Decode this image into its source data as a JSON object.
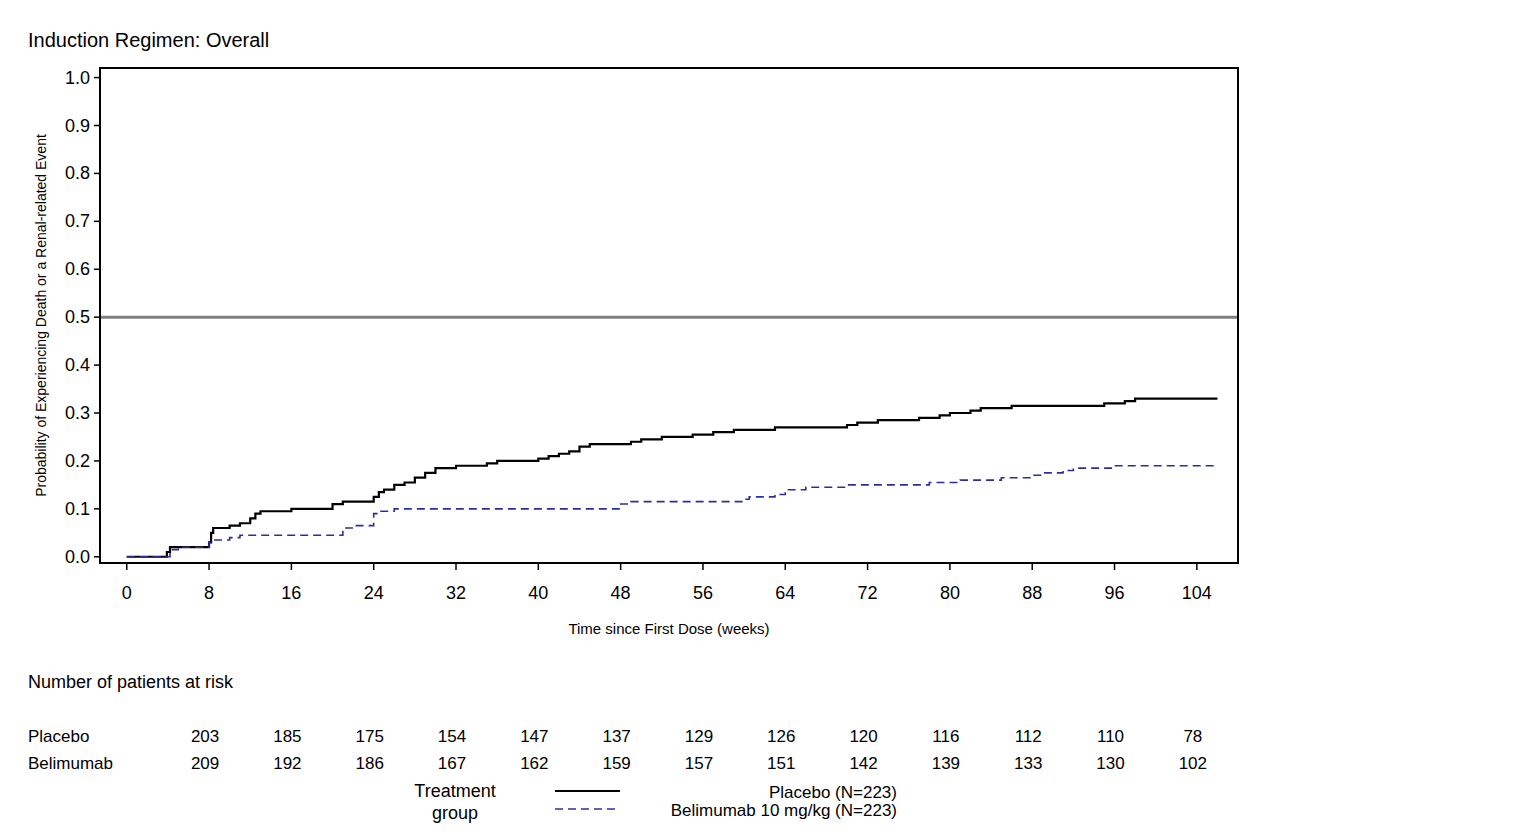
{
  "chart_data": {
    "type": "step",
    "title": "Induction Regimen: Overall",
    "x_label": "Time since First Dose (weeks)",
    "y_label": "Probability of Experiencing Death or a Renal-related Event",
    "xlim": [
      -2.6,
      108
    ],
    "ylim": [
      -0.013,
      1.02
    ],
    "xticks": [
      0,
      8,
      16,
      24,
      32,
      40,
      48,
      56,
      64,
      72,
      80,
      88,
      96,
      104
    ],
    "yticks": [
      {
        "value": 0,
        "label": "0.0"
      },
      0.1,
      0.2,
      0.3,
      0.4,
      0.5,
      0.6,
      0.7,
      0.8,
      0.9,
      {
        "value": 1,
        "label": "1.0"
      }
    ],
    "hlines": [
      0.5
    ],
    "grid": false,
    "legend": "bottom",
    "legend_title": "Treatment group",
    "series": [
      {
        "name": "Placebo (N=223)",
        "color": "#000000",
        "line_style": "solid",
        "x": [
          0,
          3.9,
          4.2,
          8,
          8.2,
          8.4,
          10,
          11,
          12,
          12.5,
          13,
          16,
          20,
          21,
          24,
          24.5,
          25,
          26,
          27,
          28,
          29,
          30,
          32,
          35,
          36,
          40,
          41,
          42,
          43,
          44,
          45,
          49,
          50,
          52,
          55,
          57,
          59,
          63,
          70,
          71,
          73,
          77,
          79,
          80,
          82,
          83,
          86,
          95,
          97,
          98,
          106
        ],
        "values": [
          0,
          0.01,
          0.02,
          0.03,
          0.05,
          0.06,
          0.065,
          0.07,
          0.08,
          0.09,
          0.095,
          0.1,
          0.11,
          0.115,
          0.125,
          0.135,
          0.14,
          0.15,
          0.155,
          0.165,
          0.175,
          0.185,
          0.19,
          0.195,
          0.2,
          0.205,
          0.21,
          0.215,
          0.22,
          0.23,
          0.235,
          0.24,
          0.245,
          0.25,
          0.255,
          0.26,
          0.265,
          0.27,
          0.275,
          0.28,
          0.285,
          0.29,
          0.295,
          0.3,
          0.305,
          0.31,
          0.315,
          0.32,
          0.325,
          0.33,
          0.33
        ]
      },
      {
        "name": "Belimumab 10 mg/kg (N=223)",
        "color": "#2b2f9e",
        "line_style": "dashed",
        "x": [
          0,
          4.2,
          5,
          8,
          8.3,
          10,
          11,
          21,
          22,
          24,
          24.3,
          26,
          48,
          49,
          60,
          60.5,
          63,
          64,
          66,
          70,
          78,
          81,
          85,
          88,
          89,
          91,
          92,
          96,
          106
        ],
        "values": [
          0,
          0.015,
          0.02,
          0.03,
          0.035,
          0.04,
          0.045,
          0.06,
          0.065,
          0.09,
          0.095,
          0.1,
          0.11,
          0.115,
          0.12,
          0.125,
          0.13,
          0.14,
          0.145,
          0.15,
          0.155,
          0.16,
          0.165,
          0.17,
          0.175,
          0.18,
          0.185,
          0.19,
          0.19
        ]
      }
    ],
    "risk_table": {
      "title": "Number of patients at risk",
      "x": [
        8,
        16,
        24,
        32,
        40,
        48,
        56,
        64,
        72,
        80,
        88,
        96,
        104
      ],
      "rows": [
        {
          "name": "Placebo",
          "values": [
            203,
            185,
            175,
            154,
            147,
            137,
            129,
            126,
            120,
            116,
            112,
            110,
            78
          ]
        },
        {
          "name": "Belimumab",
          "values": [
            209,
            192,
            186,
            167,
            162,
            159,
            157,
            151,
            142,
            139,
            133,
            130,
            102
          ]
        }
      ]
    }
  }
}
